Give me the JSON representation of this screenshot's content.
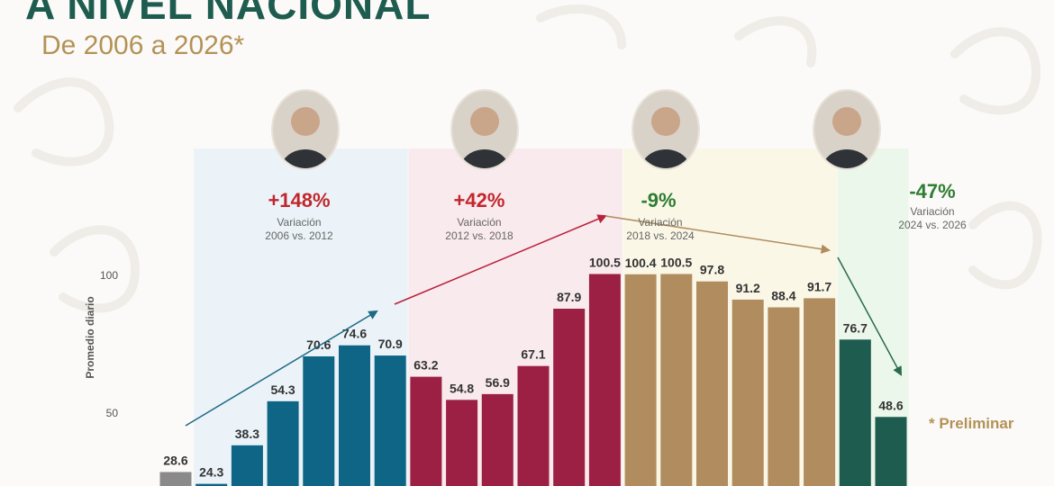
{
  "header": {
    "title": "A NIVEL NACIONAL",
    "subtitle": "De 2006 a 2026*"
  },
  "note": "* Preliminar",
  "periods": [
    {
      "pct": "+148%",
      "label": "Variación",
      "range": "2006 vs. 2012",
      "color": "#c0272d",
      "avatar_icon": "portrait-icon"
    },
    {
      "pct": "+42%",
      "label": "Variación",
      "range": "2012 vs. 2018",
      "color": "#c0272d",
      "avatar_icon": "portrait-icon"
    },
    {
      "pct": "-9%",
      "label": "Variación",
      "range": "2018 vs. 2024",
      "color": "#2e7d32",
      "avatar_icon": "portrait-icon"
    },
    {
      "pct": "-47%",
      "label": "Variación",
      "range": "2024 vs. 2026",
      "color": "#2e7d32",
      "avatar_icon": "portrait-icon"
    }
  ],
  "chart_data": {
    "type": "bar",
    "ylabel": "Promedio diario",
    "ylim": [
      0,
      100
    ],
    "y_ticks": [
      "50",
      "100"
    ],
    "grid": false,
    "values": [
      28.6,
      24.3,
      38.3,
      54.3,
      70.6,
      74.6,
      70.9,
      63.2,
      54.8,
      56.9,
      67.1,
      87.9,
      100.5,
      100.4,
      100.5,
      97.8,
      91.2,
      88.4,
      91.7,
      76.7,
      48.6
    ],
    "value_labels": [
      "28.6",
      "24.3",
      "38.3",
      "54.3",
      "70.6",
      "74.6",
      "70.9",
      "63.2",
      "54.8",
      "56.9",
      "67.1",
      "87.9",
      "100.5",
      "100.4",
      "100.5",
      "97.8",
      "91.2",
      "88.4",
      "91.7",
      "76.7",
      "48.6"
    ],
    "bar_colors": [
      "#8a8a8a",
      "#0f6585",
      "#0f6585",
      "#0f6585",
      "#0f6585",
      "#0f6585",
      "#0f6585",
      "#9b2043",
      "#9b2043",
      "#9b2043",
      "#9b2043",
      "#9b2043",
      "#9b2043",
      "#b18c5e",
      "#b18c5e",
      "#b18c5e",
      "#b18c5e",
      "#b18c5e",
      "#b18c5e",
      "#1d5c4f",
      "#1d5c4f"
    ],
    "period_bg_colors": [
      "#e6f0f8",
      "#f8e4ea",
      "#f9f5e0",
      "#e6f5e6"
    ],
    "trend_colors": [
      "#1d6a86",
      "#b8213b",
      "#b18c5e",
      "#2a6b4a"
    ]
  }
}
